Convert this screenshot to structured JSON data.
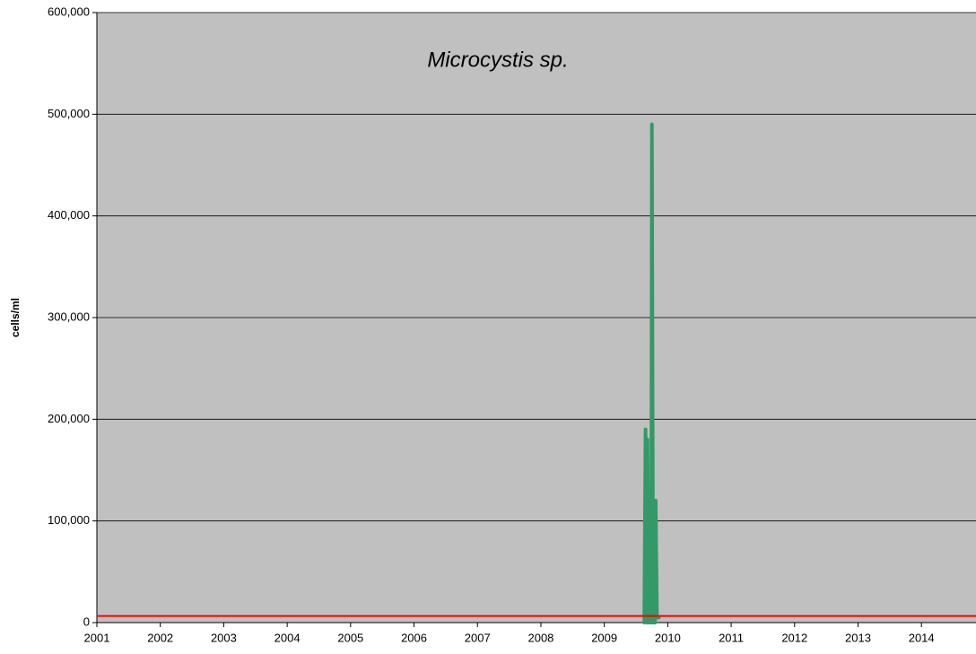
{
  "chart_data": {
    "type": "line",
    "title": "Microcystis sp.",
    "ylabel": "cells/ml",
    "x": [
      2009.63,
      2009.65,
      2009.67,
      2009.68,
      2009.7,
      2009.74,
      2009.75,
      2009.77,
      2009.8,
      2009.81,
      2009.83,
      2009.86
    ],
    "series": [
      {
        "name": "Microcystis sp.",
        "color": "#339966",
        "values": [
          0,
          190000,
          0,
          180000,
          0,
          0,
          490000,
          0,
          0,
          120000,
          5000,
          5000
        ]
      }
    ],
    "reference_line": {
      "value": 6500,
      "color": "#ff0000"
    },
    "xlim": [
      2001,
      2014.86
    ],
    "xticks": [
      2001,
      2002,
      2003,
      2004,
      2005,
      2006,
      2007,
      2008,
      2009,
      2010,
      2011,
      2012,
      2013,
      2014
    ],
    "ylim": [
      0,
      600000
    ],
    "yticks": [
      0,
      {
        "value": 100000,
        "label": "100,000"
      },
      {
        "value": 200000,
        "label": "200,000"
      },
      {
        "value": 300000,
        "label": "300,000"
      },
      {
        "value": 400000,
        "label": "400,000"
      },
      {
        "value": 500000,
        "label": "500,000"
      },
      {
        "value": 600000,
        "label": "600,000"
      }
    ],
    "plot_background": "#c0c0c0",
    "grid": true
  }
}
